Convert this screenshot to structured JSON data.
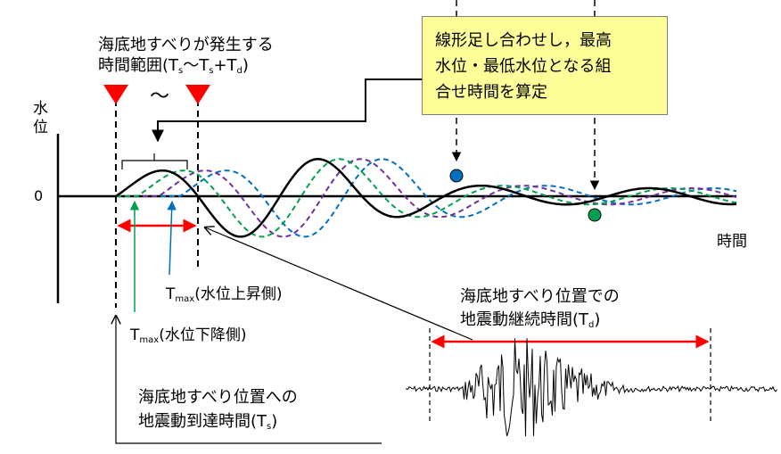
{
  "labels": {
    "range_line1": "海底地すべりが発生する",
    "range_line2_prefix": "時間範囲(T",
    "range_line2_mid1": "s",
    "range_line2_sep": "〜T",
    "range_line2_mid2": "s",
    "range_line2_plus": "+T",
    "range_line2_mid3": "d",
    "range_line2_suffix": ")",
    "tilde": "〜",
    "y_axis_1": "水",
    "y_axis_2": "位",
    "zero": "0",
    "x_axis": "時間",
    "tmax_up_t": "T",
    "tmax_up_sub": "max",
    "tmax_up_text": "(水位上昇側)",
    "tmax_down_t": "T",
    "tmax_down_sub": "max",
    "tmax_down_text": "(水位下降側)",
    "arrival_line1": "海底地すべり位置への",
    "arrival_line2_prefix": "地震動到達時間(T",
    "arrival_line2_sub": "s",
    "arrival_line2_suffix": ")",
    "duration_line1": "海底地すべり位置での",
    "duration_line2_prefix": "地震動継続時間(T",
    "duration_line2_sub": "d",
    "duration_line2_suffix": ")"
  },
  "callout": {
    "line1": "線形足し合わせし，最高",
    "line2": "水位・最低水位となる組",
    "line3": "合せ時間を算定"
  },
  "colors": {
    "combined": "#000000",
    "green": "#00a050",
    "purple": "#7030a0",
    "blue": "#0070c0",
    "marker_red": "#ff0000",
    "arrow_red": "#ff0000",
    "callout_bg": "#ffff99"
  }
}
